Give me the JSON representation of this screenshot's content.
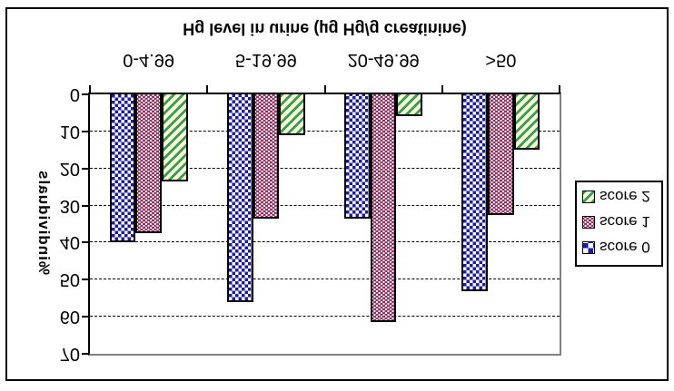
{
  "figure": {
    "background": "#ffffff",
    "frame_border_color": "#000000",
    "plot_border_gray": "#808080",
    "note": "entire chart image is vertically mirrored (all text appears upside-down)"
  },
  "chart_data": {
    "type": "bar",
    "title": "Hg level in urine (µg Hg/g creatinine)",
    "ylabel": "%individuals",
    "categories": [
      "0-4.99",
      "5-19.99",
      "20-49.99",
      ">50"
    ],
    "series": [
      {
        "name": "score 0",
        "pattern": "blue-checker",
        "color": "#1c1c9e",
        "values": [
          40,
          56,
          33.5,
          53
        ]
      },
      {
        "name": "score 1",
        "pattern": "plum-dots",
        "color": "#993366",
        "values": [
          37.5,
          33.5,
          61.5,
          32.5
        ]
      },
      {
        "name": "score 2",
        "pattern": "green-diagonal-hatch",
        "color": "#339966",
        "hatch_bg": "#ffffcc",
        "values": [
          23.5,
          11,
          6,
          15
        ]
      }
    ],
    "ylim": [
      0,
      70
    ],
    "ytick_step": 10,
    "yticks": [
      0,
      10,
      20,
      30,
      40,
      50,
      60,
      70
    ],
    "grid": "horizontal dashed black",
    "legend_position": "right-middle",
    "legend_entries_top_to_bottom_as_displayed": [
      "score 2",
      "score 1",
      "score 0"
    ],
    "bar_outline_color": "#000000"
  }
}
